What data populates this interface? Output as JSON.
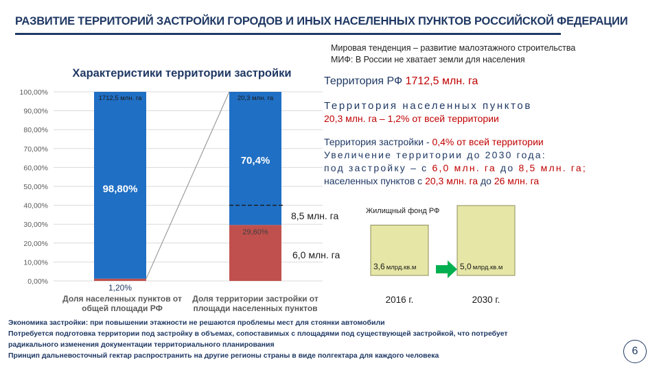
{
  "title": "РАЗВИТИЕ ТЕРРИТОРИЙ ЗАСТРОЙКИ ГОРОДОВ И ИНЫХ НАСЕЛЕННЫХ ПУНКТОВ РОССИЙСКОЙ ФЕДЕРАЦИИ",
  "side_note": {
    "line1": "Мировая тенденция – развитие малоэтажного строительства",
    "line2": "МИФ: В России не хватает земли для населения"
  },
  "info": {
    "terr_rf_prefix": "Территория РФ ",
    "terr_rf_value": "1712,5 млн. га",
    "terr_np_label": "Территория населенных пунктов",
    "terr_np_value": "20,3 млн. га – 1,2% от всей территории",
    "terr_zs_prefix": "Территория застройки - ",
    "terr_zs_value": "0,4% от всей территории",
    "growth_heading": "Увеличение территории до 2030 года:",
    "growth_line2_prefix": "под застройку – с ",
    "growth_line2_v1": "6,0 млн. га",
    "growth_line2_mid": " до ",
    "growth_line2_v2": "8,5 млн. га;",
    "growth_line3_prefix": "населенных пунктов с ",
    "growth_line3_v1": "20,3 млн. га",
    "growth_line3_mid": " до ",
    "growth_line3_v2": "26 млн. га"
  },
  "mid_labels": {
    "future": "8,5 млн. га",
    "current": "6,0 млн. га"
  },
  "colors": {
    "blue": "#1f6fc4",
    "red": "#c0504d",
    "olive": "#e6e6a6",
    "green": "#00b050",
    "navy": "#1f3864"
  },
  "chart_data": {
    "type": "bar",
    "stacked": true,
    "title": "Характеристики территории застройки",
    "ylim": [
      0,
      100
    ],
    "y_ticks": [
      "0,00%",
      "10,00%",
      "20,00%",
      "30,00%",
      "40,00%",
      "50,00%",
      "60,00%",
      "70,00%",
      "80,00%",
      "90,00%",
      "100,00%"
    ],
    "grid": true,
    "categories": [
      "Доля населенных пунктов от общей площади РФ",
      "Доля территории застройки от площади населенных пунктов"
    ],
    "category_lines": [
      [
        "Доля населенных пунктов от",
        "общей площади РФ"
      ],
      [
        "Доля территории застройки от",
        "площади населенных пунктов"
      ]
    ],
    "top_labels": [
      "1712,5 млн. га",
      "20,3 млн. га"
    ],
    "series": [
      {
        "values": [
          1.2,
          29.6
        ],
        "labels": [
          "1,20%",
          "29,60%"
        ],
        "color": "#c0504d"
      },
      {
        "values": [
          98.8,
          70.4
        ],
        "labels": [
          "98,80%",
          "70,4%"
        ],
        "color": "#1f6fc4"
      }
    ],
    "dashed_marker_value": 40
  },
  "housing_chart": {
    "title": "Жилищный фонд РФ",
    "bars": [
      {
        "year": "2016 г.",
        "value": 3.6,
        "value_label": "3,6",
        "unit": "млрд.кв.м"
      },
      {
        "year": "2030 г.",
        "value": 5.0,
        "value_label": "5,0",
        "unit": "млрд.кв.м"
      }
    ]
  },
  "bottom_notes": [
    "Экономика застройки: при повышении этажности не решаются проблемы мест для стоянки автомобили",
    "Потребуется подготовка территории под застройку в объемах, сопоставимых с площадями под существующей застройкой, что потребует",
    "радикального изменения документации территориального планирования",
    "Принцип дальневосточный гектар распространить на другие регионы страны в виде полгектара для каждого человека"
  ],
  "page_number": "6"
}
